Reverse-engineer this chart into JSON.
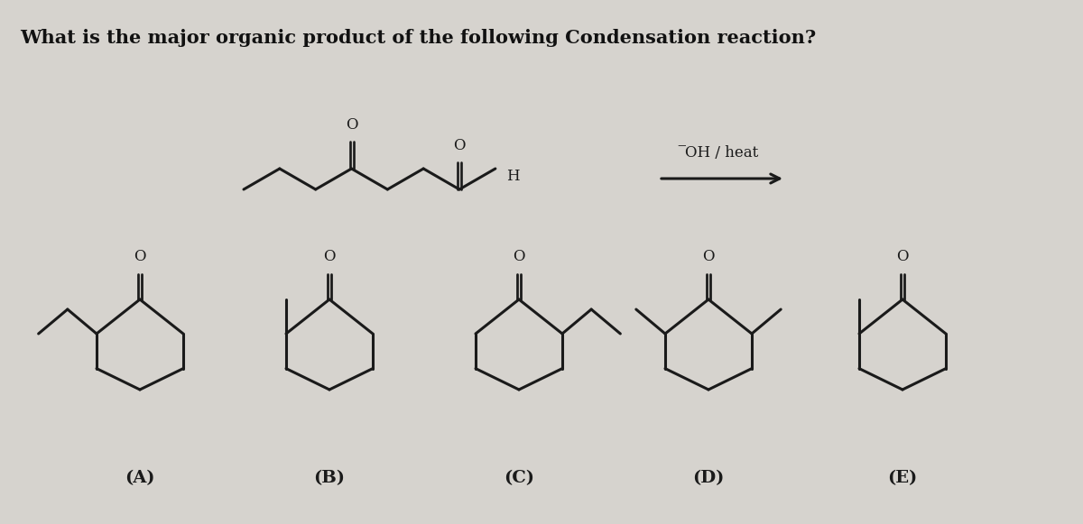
{
  "title": "What is the major organic product of the following Condensation reaction?",
  "title_fontsize": 15,
  "bg_color": "#d6d3ce",
  "line_color": "#1a1a1a",
  "line_width": 2.2,
  "text_color": "#111111",
  "labels": [
    "(A)",
    "(B)",
    "(C)",
    "(D)",
    "(E)"
  ],
  "oh_heat": "̅OH / heat",
  "label_fontsize": 14
}
